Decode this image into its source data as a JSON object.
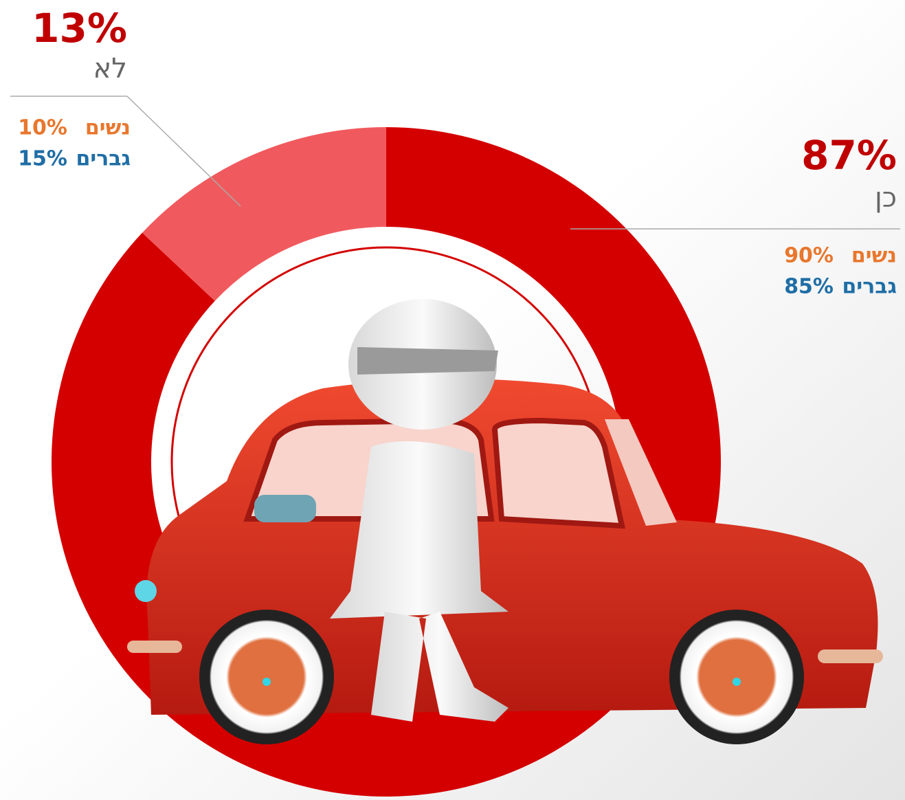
{
  "chart_data": {
    "type": "donut",
    "categories": [
      "כן",
      "לא"
    ],
    "values": [
      87,
      13
    ],
    "value_labels": [
      "87%",
      "13%"
    ],
    "colors": [
      "#d40000",
      "#f05a5e"
    ],
    "breakdown": [
      {
        "name": "נשים",
        "color": "#e8772e",
        "values": [
          90,
          10
        ],
        "value_labels": [
          "90%",
          "10%"
        ]
      },
      {
        "name": "גברים",
        "color": "#1f6ea6",
        "values": [
          85,
          15
        ],
        "value_labels": [
          "85%",
          "15%"
        ]
      }
    ]
  }
}
